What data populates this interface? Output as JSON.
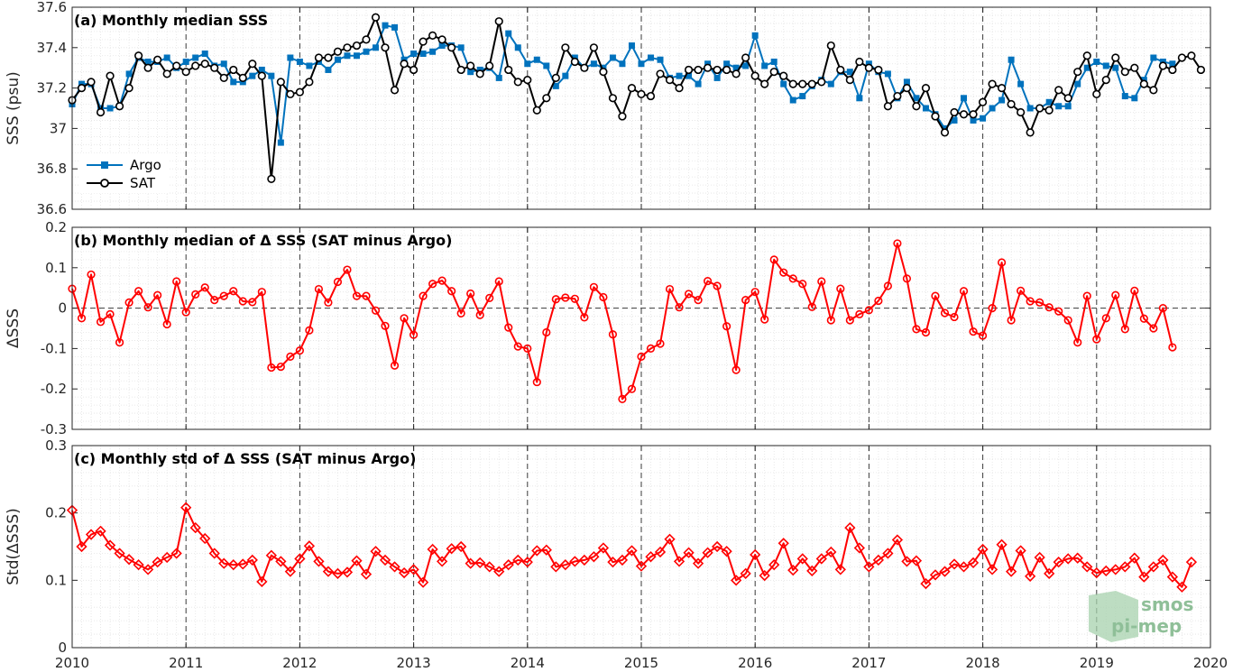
{
  "chart_data": [
    {
      "type": "line",
      "title": "(a) Monthly median SSS",
      "ylabel": "SSS (psu)",
      "ylim": [
        36.6,
        37.6
      ],
      "yticks": [
        36.6,
        36.8,
        37,
        37.2,
        37.4,
        37.6
      ],
      "xlim": [
        2010,
        2020
      ],
      "xticks": [
        2010,
        2011,
        2012,
        2013,
        2014,
        2015,
        2016,
        2017,
        2018,
        2019,
        2020
      ],
      "grid": true,
      "legend_position": "bottom-left",
      "start": 2010.0,
      "step": 0.08333,
      "series": [
        {
          "name": "Argo",
          "color": "#0072bd",
          "marker": "square",
          "values": [
            37.12,
            37.22,
            37.22,
            37.1,
            37.1,
            37.11,
            37.27,
            37.35,
            37.33,
            37.33,
            37.35,
            37.3,
            37.33,
            37.35,
            37.37,
            37.31,
            37.32,
            37.23,
            37.23,
            37.26,
            37.29,
            37.26,
            36.93,
            37.35,
            37.33,
            37.31,
            37.33,
            37.29,
            37.34,
            37.36,
            37.36,
            37.38,
            37.4,
            37.51,
            37.5,
            37.34,
            37.37,
            37.37,
            37.38,
            37.41,
            37.41,
            37.4,
            37.28,
            37.29,
            37.3,
            37.25,
            37.47,
            37.4,
            37.32,
            37.34,
            37.31,
            37.21,
            37.26,
            37.35,
            37.3,
            37.32,
            37.3,
            37.35,
            37.32,
            37.41,
            37.32,
            37.35,
            37.34,
            37.25,
            37.26,
            37.26,
            37.22,
            37.32,
            37.25,
            37.32,
            37.3,
            37.31,
            37.46,
            37.31,
            37.33,
            37.22,
            37.14,
            37.16,
            37.21,
            37.24,
            37.22,
            37.28,
            37.28,
            37.15,
            37.32,
            37.28,
            37.27,
            37.15,
            37.23,
            37.15,
            37.1,
            37.07,
            37.0,
            37.04,
            37.15,
            37.04,
            37.05,
            37.1,
            37.14,
            37.34,
            37.22,
            37.1,
            37.1,
            37.13,
            37.11,
            37.11,
            37.22,
            37.3,
            37.33,
            37.31,
            37.3,
            37.16,
            37.15,
            37.24,
            37.35,
            37.33,
            37.32
          ]
        },
        {
          "name": "SAT",
          "color": "#000000",
          "marker": "circle",
          "values": [
            37.14,
            37.2,
            37.23,
            37.08,
            37.26,
            37.11,
            37.2,
            37.36,
            37.3,
            37.34,
            37.27,
            37.31,
            37.28,
            37.31,
            37.32,
            37.3,
            37.25,
            37.29,
            37.25,
            37.32,
            37.26,
            36.75,
            37.23,
            37.17,
            37.18,
            37.23,
            37.35,
            37.35,
            37.38,
            37.4,
            37.41,
            37.44,
            37.55,
            37.4,
            37.19,
            37.32,
            37.29,
            37.43,
            37.46,
            37.44,
            37.4,
            37.29,
            37.31,
            37.27,
            37.31,
            37.53,
            37.29,
            37.23,
            37.24,
            37.09,
            37.15,
            37.25,
            37.4,
            37.33,
            37.3,
            37.4,
            37.28,
            37.15,
            37.06,
            37.2,
            37.17,
            37.16,
            37.27,
            37.24,
            37.2,
            37.29,
            37.29,
            37.3,
            37.29,
            37.29,
            37.27,
            37.35,
            37.26,
            37.22,
            37.28,
            37.26,
            37.22,
            37.22,
            37.22,
            37.23,
            37.41,
            37.29,
            37.24,
            37.33,
            37.3,
            37.29,
            37.11,
            37.16,
            37.2,
            37.11,
            37.2,
            37.06,
            36.98,
            37.08,
            37.07,
            37.07,
            37.13,
            37.22,
            37.2,
            37.12,
            37.08,
            36.98,
            37.1,
            37.09,
            37.19,
            37.15,
            37.28,
            37.36,
            37.17,
            37.24,
            37.35,
            37.28,
            37.3,
            37.22,
            37.19,
            37.31,
            37.29,
            37.35,
            37.36,
            37.29
          ]
        }
      ]
    },
    {
      "type": "line",
      "title": "(b) Monthly median of Δ SSS (SAT minus Argo)",
      "ylabel": "ΔSSS",
      "ylim": [
        -0.3,
        0.2
      ],
      "yticks": [
        -0.3,
        -0.2,
        -0.1,
        0,
        0.1,
        0.2
      ],
      "xlim": [
        2010,
        2020
      ],
      "reference_line": 0,
      "grid": true,
      "start": 2010.0,
      "step": 0.08333,
      "series": [
        {
          "color": "#ff0000",
          "marker": "circle",
          "values": [
            0.048,
            -0.025,
            0.083,
            -0.034,
            -0.015,
            -0.085,
            0.014,
            0.042,
            0.002,
            0.032,
            -0.04,
            0.066,
            -0.01,
            0.034,
            0.051,
            0.02,
            0.03,
            0.042,
            0.017,
            0.015,
            0.04,
            -0.147,
            -0.145,
            -0.12,
            -0.105,
            -0.055,
            0.047,
            0.014,
            0.065,
            0.095,
            0.03,
            0.03,
            -0.006,
            -0.044,
            -0.142,
            -0.025,
            -0.066,
            0.03,
            0.06,
            0.068,
            0.042,
            -0.013,
            0.036,
            -0.017,
            0.025,
            0.066,
            -0.048,
            -0.095,
            -0.1,
            -0.183,
            -0.06,
            0.022,
            0.026,
            0.023,
            -0.023,
            0.052,
            0.027,
            -0.065,
            -0.225,
            -0.2,
            -0.12,
            -0.1,
            -0.088,
            0.047,
            0.002,
            0.035,
            0.02,
            0.067,
            0.055,
            -0.045,
            -0.153,
            0.02,
            0.04,
            -0.028,
            0.12,
            0.088,
            0.073,
            0.06,
            0.003,
            0.066,
            -0.03,
            0.048,
            -0.03,
            -0.015,
            -0.005,
            0.018,
            0.055,
            0.16,
            0.073,
            -0.052,
            -0.06,
            0.03,
            -0.012,
            -0.022,
            0.042,
            -0.058,
            -0.068,
            0.0,
            0.113,
            -0.03,
            0.043,
            0.017,
            0.014,
            0.002,
            -0.008,
            -0.03,
            -0.085,
            0.03,
            -0.077,
            -0.025,
            0.032,
            -0.052,
            0.043,
            -0.026,
            -0.05,
            0.0,
            -0.097
          ]
        }
      ]
    },
    {
      "type": "line",
      "title": "(c) Monthly std of Δ SSS (SAT minus Argo)",
      "ylabel": "Std(ΔSSS)",
      "ylim": [
        0,
        0.3
      ],
      "yticks": [
        0,
        0.1,
        0.2,
        0.3
      ],
      "xlim": [
        2010,
        2020
      ],
      "xticks": [
        2010,
        2011,
        2012,
        2013,
        2014,
        2015,
        2016,
        2017,
        2018,
        2019,
        2020
      ],
      "grid": true,
      "start": 2010.0,
      "step": 0.08333,
      "series": [
        {
          "color": "#ff0000",
          "marker": "diamond",
          "values": [
            0.204,
            0.15,
            0.168,
            0.173,
            0.152,
            0.14,
            0.131,
            0.123,
            0.116,
            0.127,
            0.134,
            0.14,
            0.208,
            0.178,
            0.162,
            0.14,
            0.125,
            0.123,
            0.124,
            0.13,
            0.098,
            0.137,
            0.128,
            0.113,
            0.132,
            0.151,
            0.128,
            0.113,
            0.11,
            0.112,
            0.129,
            0.109,
            0.143,
            0.13,
            0.12,
            0.111,
            0.116,
            0.097,
            0.146,
            0.128,
            0.147,
            0.15,
            0.125,
            0.126,
            0.12,
            0.113,
            0.123,
            0.13,
            0.127,
            0.144,
            0.145,
            0.12,
            0.123,
            0.128,
            0.13,
            0.135,
            0.148,
            0.127,
            0.13,
            0.144,
            0.121,
            0.135,
            0.142,
            0.161,
            0.128,
            0.141,
            0.125,
            0.141,
            0.15,
            0.143,
            0.1,
            0.11,
            0.138,
            0.107,
            0.123,
            0.155,
            0.115,
            0.132,
            0.114,
            0.132,
            0.142,
            0.116,
            0.178,
            0.148,
            0.12,
            0.13,
            0.14,
            0.16,
            0.128,
            0.129,
            0.095,
            0.108,
            0.113,
            0.124,
            0.12,
            0.126,
            0.146,
            0.116,
            0.153,
            0.113,
            0.144,
            0.106,
            0.134,
            0.11,
            0.127,
            0.132,
            0.133,
            0.12,
            0.111,
            0.114,
            0.116,
            0.12,
            0.133,
            0.105,
            0.12,
            0.13,
            0.105,
            0.09,
            0.127
          ]
        }
      ]
    }
  ],
  "logo": {
    "line1": "smos",
    "line2": "pi-mep",
    "color": "#8fbf98"
  }
}
